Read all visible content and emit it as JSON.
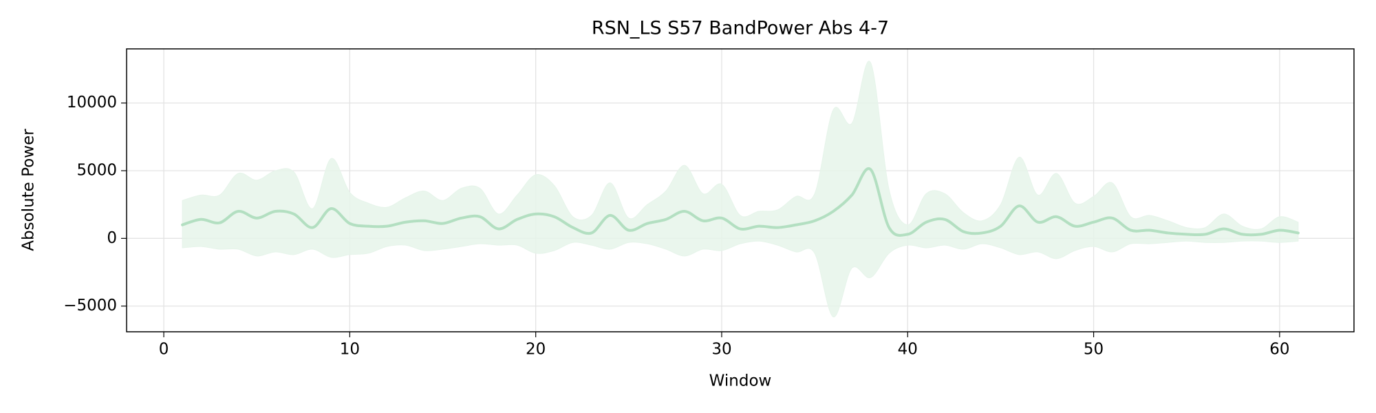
{
  "chart_data": {
    "type": "line",
    "title": "RSN_LS S57 BandPower Abs 4-7",
    "xlabel": "Window",
    "ylabel": "Absolute Power",
    "x": [
      1,
      2,
      3,
      4,
      5,
      6,
      7,
      8,
      9,
      10,
      11,
      12,
      13,
      14,
      15,
      16,
      17,
      18,
      19,
      20,
      21,
      22,
      23,
      24,
      25,
      26,
      27,
      28,
      29,
      30,
      31,
      32,
      33,
      34,
      35,
      36,
      37,
      38,
      39,
      40,
      41,
      42,
      43,
      44,
      45,
      46,
      47,
      48,
      49,
      50,
      51,
      52,
      53,
      54,
      55,
      56,
      57,
      58,
      59,
      60,
      61
    ],
    "values": [
      1000,
      1400,
      1150,
      2000,
      1500,
      2000,
      1800,
      800,
      2200,
      1100,
      900,
      900,
      1200,
      1300,
      1100,
      1500,
      1600,
      700,
      1400,
      1800,
      1600,
      800,
      400,
      1700,
      600,
      1100,
      1400,
      2000,
      1300,
      1500,
      700,
      900,
      800,
      1000,
      1300,
      2000,
      3200,
      5100,
      800,
      300,
      1200,
      1400,
      500,
      400,
      900,
      2400,
      1200,
      1600,
      900,
      1200,
      1500,
      600,
      600,
      400,
      300,
      300,
      700,
      300,
      300,
      600,
      400
    ],
    "band_upper": [
      2800,
      3200,
      3200,
      4800,
      4300,
      5000,
      4900,
      2200,
      5900,
      3400,
      2600,
      2300,
      3000,
      3500,
      2800,
      3700,
      3700,
      1800,
      3200,
      4700,
      3900,
      1600,
      1700,
      4100,
      1500,
      2500,
      3500,
      5400,
      3300,
      4000,
      1700,
      2000,
      2100,
      3100,
      3300,
      9500,
      8500,
      13000,
      3600,
      1000,
      3300,
      3300,
      1900,
      1300,
      2500,
      6000,
      3200,
      4800,
      2600,
      3100,
      4100,
      1600,
      1700,
      1300,
      800,
      800,
      1800,
      900,
      700,
      1600,
      1200
    ],
    "band_lower": [
      -700,
      -600,
      -800,
      -800,
      -1300,
      -1000,
      -1200,
      -800,
      -1400,
      -1200,
      -1100,
      -600,
      -500,
      -900,
      -800,
      -600,
      -400,
      -500,
      -500,
      -1100,
      -900,
      -300,
      -500,
      -800,
      -300,
      -400,
      -800,
      -1300,
      -800,
      -900,
      -400,
      -200,
      -500,
      -1000,
      -1100,
      -5800,
      -2200,
      -2900,
      -1100,
      -500,
      -700,
      -500,
      -800,
      -400,
      -700,
      -1200,
      -1000,
      -1500,
      -900,
      -600,
      -1000,
      -400,
      -400,
      -300,
      -200,
      -300,
      -300,
      -200,
      -200,
      -300,
      -200
    ],
    "color": "#b3dfc1",
    "band_color": "#e6f4ea",
    "xlim": [
      -2,
      64
    ],
    "ylim": [
      -6900,
      14000
    ],
    "xticks": [
      0,
      10,
      20,
      30,
      40,
      50,
      60
    ],
    "yticks": [
      {
        "value": -5000,
        "label": "−5000"
      },
      0,
      5000,
      10000
    ],
    "grid": true
  }
}
